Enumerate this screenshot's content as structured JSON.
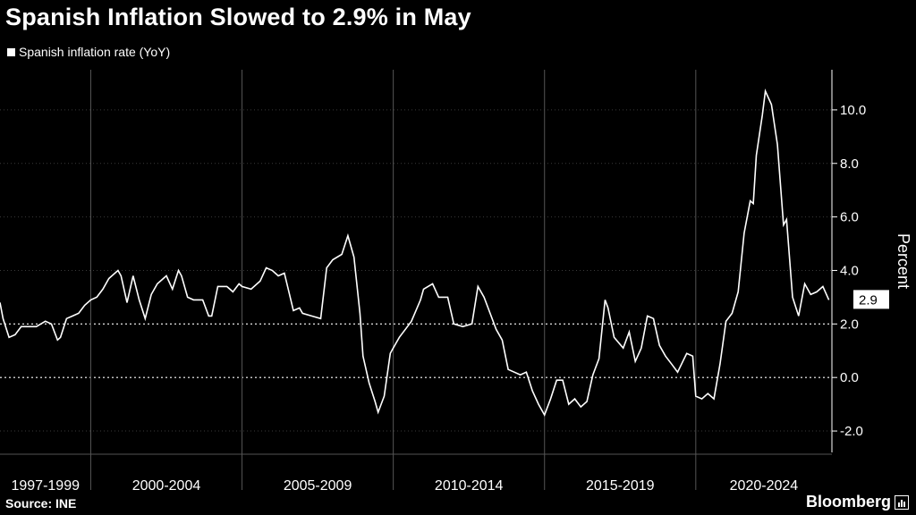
{
  "header": {
    "title": "Spanish Inflation Slowed to 2.9% in May",
    "legend_label": "Spanish inflation rate (YoY)"
  },
  "footer": {
    "source": "Source: INE",
    "brand": "Bloomberg"
  },
  "colors": {
    "background": "#000000",
    "line": "#ffffff",
    "grid": "#444444"
  },
  "chart_data": {
    "type": "line",
    "title": "Spanish Inflation Slowed to 2.9% in May",
    "ylabel": "Percent",
    "ylim": [
      -2.8,
      11.5
    ],
    "yticks": [
      -2.0,
      0.0,
      2.0,
      4.0,
      6.0,
      8.0,
      10.0
    ],
    "ytick_labels": [
      "-2.0",
      "0.0",
      "2.0",
      "4.0",
      "6.0",
      "8.0",
      "10.0"
    ],
    "xlim": [
      1997.0,
      2024.5
    ],
    "x_group_labels": [
      {
        "label": "1997-1999",
        "from": 1997.0,
        "to": 2000.0
      },
      {
        "label": "2000-2004",
        "from": 2000.0,
        "to": 2005.0
      },
      {
        "label": "2005-2009",
        "from": 2005.0,
        "to": 2010.0
      },
      {
        "label": "2010-2014",
        "from": 2010.0,
        "to": 2015.0
      },
      {
        "label": "2015-2019",
        "from": 2015.0,
        "to": 2020.0
      },
      {
        "label": "2020-2024",
        "from": 2020.0,
        "to": 2024.5
      }
    ],
    "dotted_reference_lines": [
      0.0,
      2.0
    ],
    "last_value_label": "2.9",
    "series": [
      {
        "name": "Spanish inflation rate (YoY)",
        "x": [
          1997.0,
          1997.1,
          1997.3,
          1997.5,
          1997.7,
          1998.0,
          1998.2,
          1998.5,
          1998.7,
          1998.9,
          1999.0,
          1999.2,
          1999.4,
          1999.6,
          1999.8,
          2000.0,
          2000.2,
          2000.4,
          2000.6,
          2000.9,
          2001.0,
          2001.2,
          2001.4,
          2001.6,
          2001.8,
          2002.0,
          2002.2,
          2002.5,
          2002.7,
          2002.9,
          2003.0,
          2003.2,
          2003.4,
          2003.7,
          2003.9,
          2004.0,
          2004.2,
          2004.5,
          2004.7,
          2004.9,
          2005.0,
          2005.3,
          2005.6,
          2005.8,
          2006.0,
          2006.2,
          2006.4,
          2006.7,
          2006.9,
          2007.0,
          2007.3,
          2007.6,
          2007.8,
          2008.0,
          2008.3,
          2008.5,
          2008.7,
          2008.9,
          2009.0,
          2009.2,
          2009.4,
          2009.5,
          2009.7,
          2009.9,
          2010.0,
          2010.2,
          2010.4,
          2010.6,
          2010.9,
          2011.0,
          2011.3,
          2011.5,
          2011.8,
          2012.0,
          2012.3,
          2012.6,
          2012.8,
          2013.0,
          2013.2,
          2013.4,
          2013.6,
          2013.8,
          2014.0,
          2014.2,
          2014.4,
          2014.6,
          2014.8,
          2015.0,
          2015.2,
          2015.4,
          2015.6,
          2015.8,
          2016.0,
          2016.2,
          2016.4,
          2016.6,
          2016.8,
          2017.0,
          2017.1,
          2017.3,
          2017.6,
          2017.8,
          2018.0,
          2018.2,
          2018.4,
          2018.6,
          2018.8,
          2019.0,
          2019.2,
          2019.4,
          2019.7,
          2019.9,
          2020.0,
          2020.2,
          2020.4,
          2020.6,
          2020.8,
          2021.0,
          2021.2,
          2021.4,
          2021.6,
          2021.8,
          2021.9,
          2022.0,
          2022.2,
          2022.3,
          2022.5,
          2022.7,
          2022.9,
          2023.0,
          2023.2,
          2023.4,
          2023.6,
          2023.8,
          2024.0,
          2024.2,
          2024.4
        ],
        "values": [
          2.8,
          2.2,
          1.5,
          1.6,
          1.9,
          1.9,
          1.9,
          2.1,
          2.0,
          1.4,
          1.5,
          2.2,
          2.3,
          2.4,
          2.7,
          2.9,
          3.0,
          3.3,
          3.7,
          4.0,
          3.8,
          2.8,
          3.8,
          2.9,
          2.2,
          3.1,
          3.5,
          3.8,
          3.3,
          4.0,
          3.8,
          3.0,
          2.9,
          2.9,
          2.3,
          2.3,
          3.4,
          3.4,
          3.2,
          3.5,
          3.4,
          3.3,
          3.6,
          4.1,
          4.0,
          3.8,
          3.9,
          2.5,
          2.6,
          2.4,
          2.3,
          2.2,
          4.1,
          4.4,
          4.6,
          5.3,
          4.5,
          2.4,
          0.8,
          -0.2,
          -0.9,
          -1.3,
          -0.7,
          0.9,
          1.1,
          1.5,
          1.8,
          2.1,
          2.9,
          3.3,
          3.5,
          3.0,
          3.0,
          2.0,
          1.9,
          2.0,
          3.4,
          3.0,
          2.4,
          1.8,
          1.4,
          0.3,
          0.2,
          0.1,
          0.2,
          -0.5,
          -1.0,
          -1.4,
          -0.8,
          -0.1,
          -0.1,
          -1.0,
          -0.8,
          -1.1,
          -0.9,
          0.1,
          0.7,
          2.9,
          2.6,
          1.5,
          1.1,
          1.7,
          0.6,
          1.1,
          2.3,
          2.2,
          1.2,
          0.8,
          0.5,
          0.2,
          0.9,
          0.8,
          -0.7,
          -0.8,
          -0.6,
          -0.8,
          0.5,
          2.1,
          2.4,
          3.2,
          5.4,
          6.6,
          6.5,
          8.3,
          9.8,
          10.7,
          10.2,
          8.7,
          5.7,
          5.9,
          3.0,
          2.3,
          3.5,
          3.1,
          3.2,
          3.4,
          2.9
        ]
      }
    ]
  }
}
